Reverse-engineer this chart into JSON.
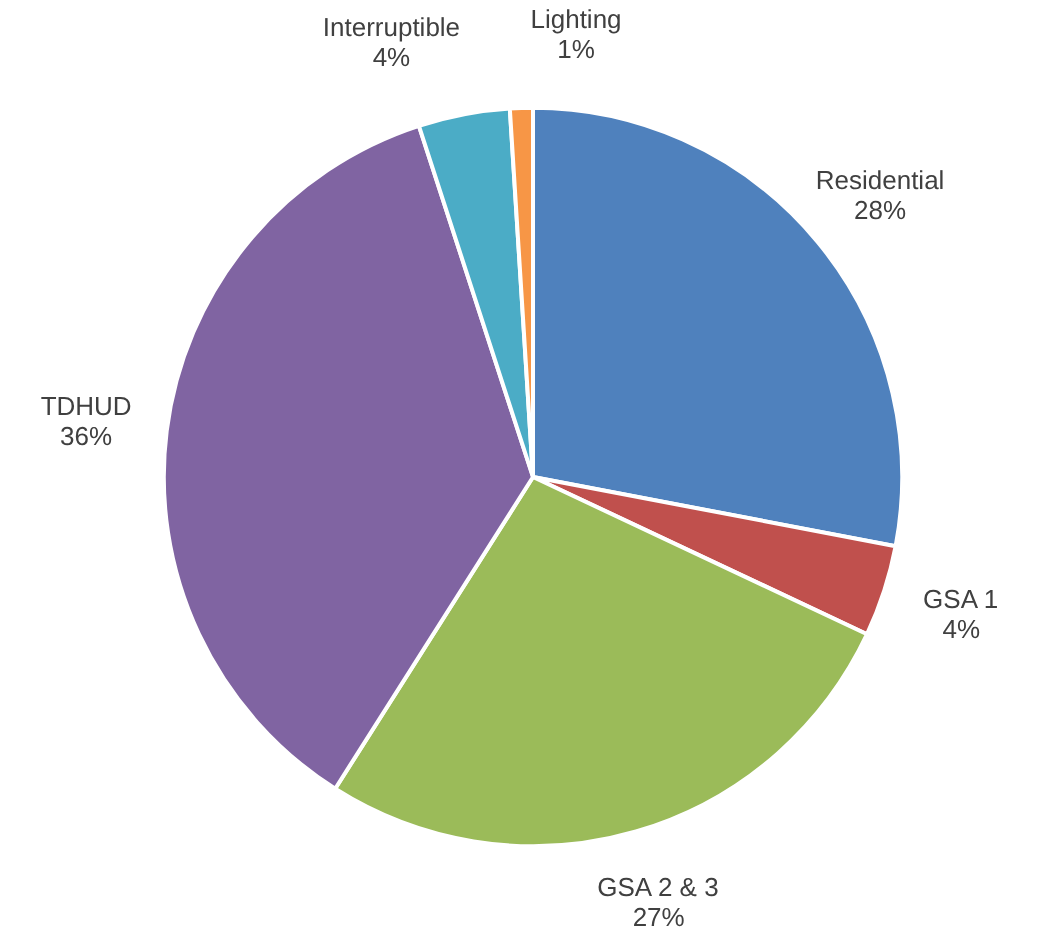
{
  "chart_data": {
    "type": "pie",
    "categories": [
      "Residential",
      "GSA 1",
      "GSA 2 & 3",
      "TDHUD",
      "Interruptible",
      "Lighting"
    ],
    "values": [
      28,
      4,
      27,
      36,
      4,
      1
    ],
    "value_labels": [
      "28%",
      "4%",
      "27%",
      "36%",
      "4%",
      "1%"
    ],
    "colors": [
      "#4f81bd",
      "#c0504d",
      "#9bbb59",
      "#8064a2",
      "#4bacc6",
      "#f79646"
    ]
  }
}
